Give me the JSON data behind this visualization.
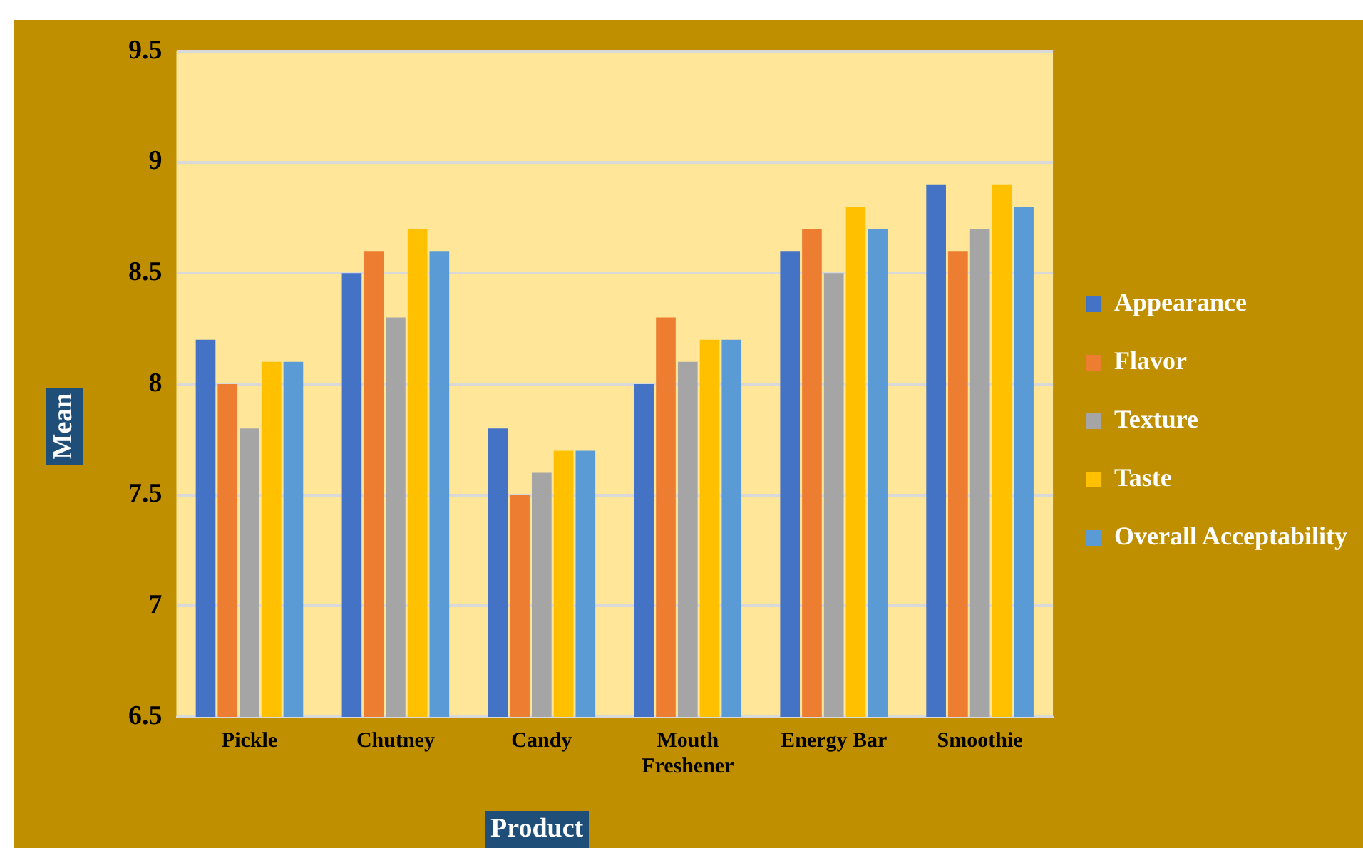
{
  "chart_data": {
    "type": "bar",
    "xlabel": "Product",
    "ylabel": "Mean",
    "categories": [
      "Pickle",
      "Chutney",
      "Candy",
      "Mouth Freshener",
      "Energy Bar",
      "Smoothie"
    ],
    "series": [
      {
        "name": "Appearance",
        "color": "#4472c4",
        "values": [
          8.2,
          8.5,
          7.8,
          8.0,
          8.6,
          8.9
        ]
      },
      {
        "name": "Flavor",
        "color": "#ed7d31",
        "values": [
          8.0,
          8.6,
          7.5,
          8.3,
          8.7,
          8.6
        ]
      },
      {
        "name": "Texture",
        "color": "#a5a5a5",
        "values": [
          7.8,
          8.3,
          7.6,
          8.1,
          8.5,
          8.7
        ]
      },
      {
        "name": "Taste",
        "color": "#ffc000",
        "values": [
          8.1,
          8.7,
          7.7,
          8.2,
          8.8,
          8.9
        ]
      },
      {
        "name": "Overall Acceptability",
        "color": "#5b9bd5",
        "values": [
          8.1,
          8.6,
          7.7,
          8.2,
          8.7,
          8.8
        ]
      }
    ],
    "ylim": [
      6.5,
      9.5
    ],
    "yticks": [
      6.5,
      7,
      7.5,
      8,
      8.5,
      9,
      9.5
    ],
    "grid": "y",
    "legend": "right"
  }
}
